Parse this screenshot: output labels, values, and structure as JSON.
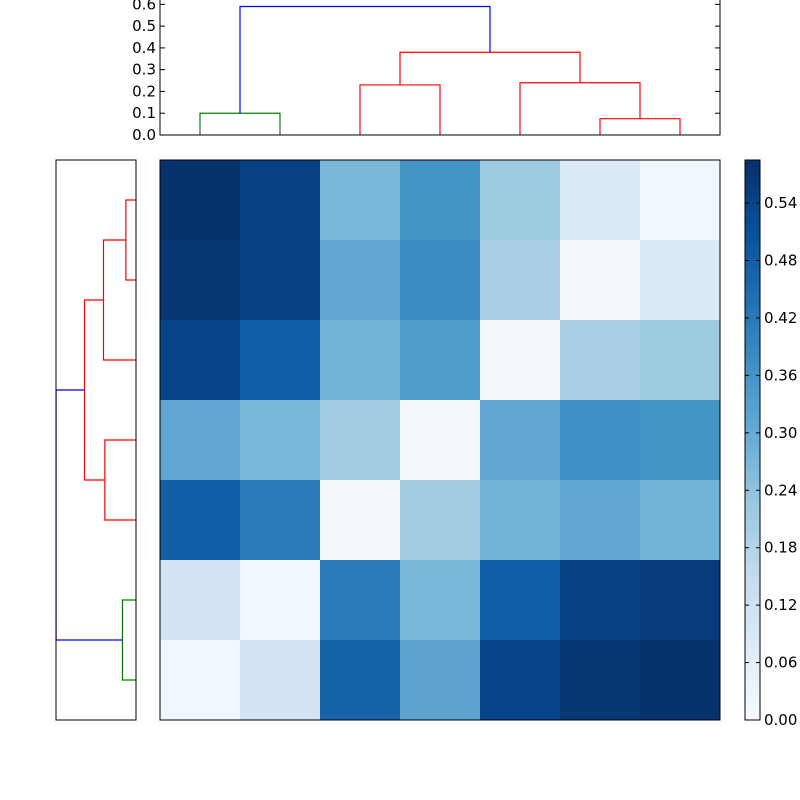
{
  "chart_data": [
    {
      "type": "dendrogram",
      "orientation": "top",
      "ylim": [
        0,
        0.62
      ],
      "yticks": [
        "0.0",
        "0.1",
        "0.2",
        "0.3",
        "0.4",
        "0.5",
        "0.6"
      ],
      "leaf_order": [
        6,
        5,
        4,
        3,
        2,
        1,
        0
      ],
      "links": [
        {
          "children": [
            6,
            5
          ],
          "height": 0.1,
          "color": "#008000"
        },
        {
          "children": [
            1,
            0
          ],
          "height": 0.075,
          "color": "#ff0000"
        },
        {
          "children": [
            2,
            "1+0"
          ],
          "height": 0.24,
          "color": "#ff0000"
        },
        {
          "children": [
            4,
            3
          ],
          "height": 0.23,
          "color": "#ff0000"
        },
        {
          "children": [
            "4+3",
            "2+1+0"
          ],
          "height": 0.38,
          "color": "#ff0000"
        },
        {
          "children": [
            "6+5",
            "4+3+2+1+0"
          ],
          "height": 0.59,
          "color": "#0000ff"
        }
      ]
    },
    {
      "type": "dendrogram",
      "orientation": "left",
      "links": [
        {
          "children": [
            0,
            1
          ],
          "height": 0.1,
          "color": "#008000"
        },
        {
          "children": [
            2,
            3
          ],
          "height": 0.23,
          "color": "#ff0000"
        },
        {
          "children": [
            5,
            6
          ],
          "height": 0.075,
          "color": "#ff0000"
        },
        {
          "children": [
            4,
            "5+6"
          ],
          "height": 0.24,
          "color": "#ff0000"
        },
        {
          "children": [
            "2+3",
            "4+5+6"
          ],
          "height": 0.38,
          "color": "#ff0000"
        },
        {
          "children": [
            "0+1",
            "2+3+4+5+6"
          ],
          "height": 0.59,
          "color": "#0000ff"
        }
      ]
    },
    {
      "type": "heatmap",
      "colormap": "Blues",
      "vmin": 0,
      "vmax": 0.585,
      "matrix": [
        [
          0.58,
          0.55,
          0.27,
          0.36,
          0.22,
          0.08,
          0.02
        ],
        [
          0.57,
          0.55,
          0.31,
          0.38,
          0.2,
          0.01,
          0.08
        ],
        [
          0.54,
          0.48,
          0.28,
          0.34,
          0.01,
          0.2,
          0.22
        ],
        [
          0.31,
          0.27,
          0.21,
          0.01,
          0.31,
          0.37,
          0.36
        ],
        [
          0.48,
          0.42,
          0.01,
          0.21,
          0.28,
          0.31,
          0.28
        ],
        [
          0.11,
          0.02,
          0.42,
          0.27,
          0.48,
          0.55,
          0.56
        ],
        [
          0.02,
          0.11,
          0.47,
          0.32,
          0.54,
          0.57,
          0.58
        ]
      ],
      "colorbar": {
        "ticks": [
          "0.00",
          "0.06",
          "0.12",
          "0.18",
          "0.24",
          "0.30",
          "0.36",
          "0.42",
          "0.48",
          "0.54"
        ]
      }
    }
  ]
}
